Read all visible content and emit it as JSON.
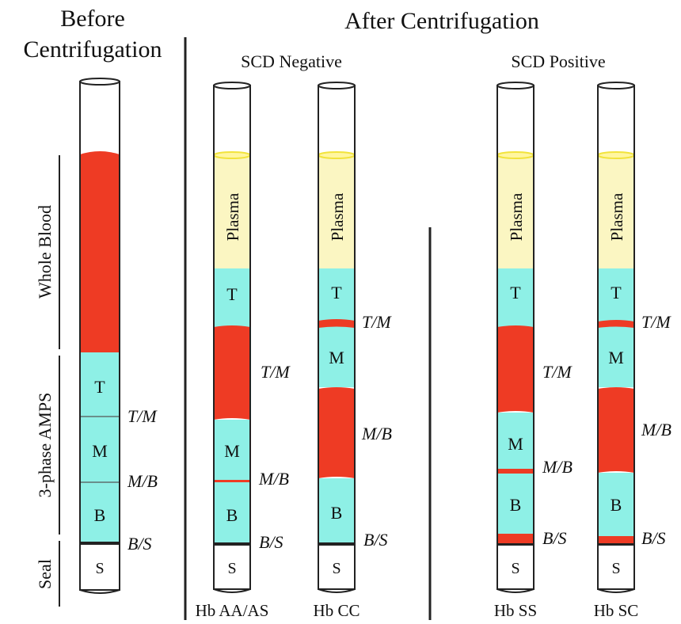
{
  "headings": {
    "before_line1": "Before",
    "before_line2": "Centrifugation",
    "after": "After Centrifugation",
    "scd_negative": "SCD Negative",
    "scd_positive": "SCD Positive"
  },
  "side_labels": {
    "whole_blood": "Whole Blood",
    "amps": "3-phase AMPS",
    "seal": "Seal"
  },
  "colors": {
    "blood": "#ee3b24",
    "phase": "#8ef0e6",
    "plasma": "#fbf6c2",
    "plasma_rim": "#f7eb5a",
    "outline": "#222222"
  },
  "tubes": {
    "before": {
      "segments": {
        "T": "T",
        "M": "M",
        "B": "B",
        "S": "S"
      },
      "interfaces": {
        "tm": "T/M",
        "mb": "M/B",
        "bs": "B/S"
      }
    },
    "aa": {
      "caption": "Hb AA/AS",
      "segments": {
        "plasma": "Plasma",
        "T": "T",
        "M": "M",
        "B": "B",
        "S": "S"
      },
      "interfaces": {
        "tm": "T/M",
        "mb": "M/B",
        "bs": "B/S"
      }
    },
    "cc": {
      "caption": "Hb CC",
      "segments": {
        "plasma": "Plasma",
        "T": "T",
        "M": "M",
        "B": "B",
        "S": "S"
      },
      "interfaces": {
        "tm": "T/M",
        "mb": "M/B",
        "bs": "B/S"
      }
    },
    "ss": {
      "caption": "Hb SS",
      "segments": {
        "plasma": "Plasma",
        "T": "T",
        "M": "M",
        "B": "B",
        "S": "S"
      },
      "interfaces": {
        "tm": "T/M",
        "mb": "M/B",
        "bs": "B/S"
      }
    },
    "sc": {
      "caption": "Hb SC",
      "segments": {
        "plasma": "Plasma",
        "T": "T",
        "M": "M",
        "B": "B",
        "S": "S"
      },
      "interfaces": {
        "tm": "T/M",
        "mb": "M/B",
        "bs": "B/S"
      }
    }
  }
}
